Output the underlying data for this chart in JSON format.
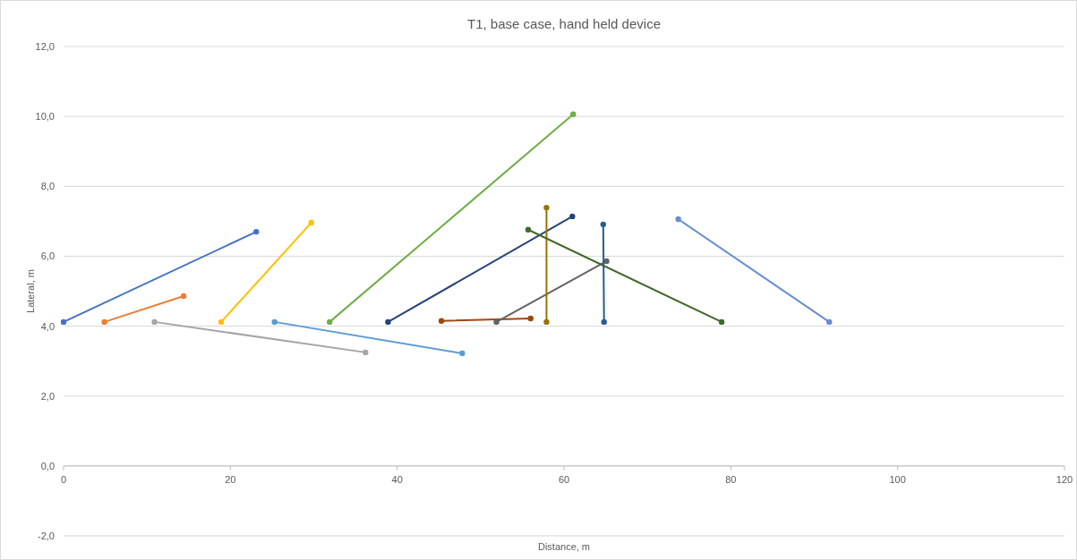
{
  "chart_data": {
    "type": "line",
    "title": "T1, base case, hand held device",
    "xlabel": "Distance, m",
    "ylabel": "Lateral, m",
    "xlim": [
      0,
      120
    ],
    "xticks": [
      0,
      20,
      40,
      60,
      80,
      100,
      120
    ],
    "ylim": [
      -2,
      12
    ],
    "yticks": [
      {
        "value": -2,
        "label": "-2,0"
      },
      {
        "value": 0,
        "label": "0,0"
      },
      {
        "value": 2,
        "label": "2,0"
      },
      {
        "value": 4,
        "label": "4,0"
      },
      {
        "value": 6,
        "label": "6,0"
      },
      {
        "value": 8,
        "label": "8,0"
      },
      {
        "value": 10,
        "label": "10,0"
      },
      {
        "value": 12,
        "label": "12,0"
      }
    ],
    "grid": "y",
    "marker": "circle",
    "series": [
      {
        "color": "#4472c4",
        "x": [
          0,
          23.1
        ],
        "values": [
          4.12,
          6.7
        ]
      },
      {
        "color": "#ed7d31",
        "x": [
          4.9,
          14.4
        ],
        "values": [
          4.12,
          4.86
        ]
      },
      {
        "color": "#a5a5a5",
        "x": [
          10.9,
          36.2
        ],
        "values": [
          4.12,
          3.25
        ]
      },
      {
        "color": "#ffc000",
        "x": [
          18.9,
          29.7
        ],
        "values": [
          4.12,
          6.96
        ]
      },
      {
        "color": "#5b9bd5",
        "x": [
          25.3,
          47.8
        ],
        "values": [
          4.12,
          3.22
        ]
      },
      {
        "color": "#70ad47",
        "x": [
          31.9,
          61.1
        ],
        "values": [
          4.12,
          10.06
        ]
      },
      {
        "color": "#264478",
        "x": [
          38.9,
          61
        ],
        "values": [
          4.12,
          7.14
        ]
      },
      {
        "color": "#9e480e",
        "x": [
          45.3,
          56
        ],
        "values": [
          4.15,
          4.22
        ]
      },
      {
        "color": "#636363",
        "x": [
          51.9,
          65.1
        ],
        "values": [
          4.12,
          5.86
        ]
      },
      {
        "color": "#997300",
        "x": [
          57.9,
          57.9
        ],
        "values": [
          7.39,
          4.12
        ]
      },
      {
        "color": "#43682b",
        "x": [
          55.7,
          78.9
        ],
        "values": [
          6.76,
          4.12
        ]
      },
      {
        "color": "#255e91",
        "x": [
          64.7,
          64.8
        ],
        "values": [
          6.91,
          4.12
        ]
      },
      {
        "color": "#698ed0",
        "x": [
          73.7,
          91.8
        ],
        "values": [
          7.06,
          4.12
        ]
      }
    ]
  }
}
